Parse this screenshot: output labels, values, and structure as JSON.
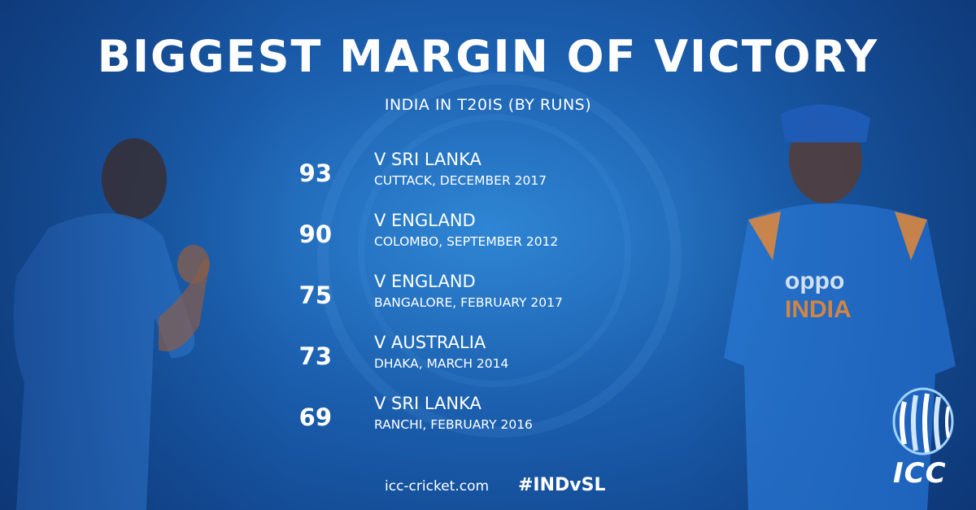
{
  "header": {
    "title": "BIGGEST MARGIN OF VICTORY",
    "subtitle": "INDIA IN T20IS (BY RUNS)"
  },
  "victories": [
    {
      "runs": "93",
      "opponent": "V SRI LANKA",
      "venue": "CUTTACK, DECEMBER 2017"
    },
    {
      "runs": "90",
      "opponent": "V ENGLAND",
      "venue": "COLOMBO, SEPTEMBER 2012"
    },
    {
      "runs": "75",
      "opponent": "V ENGLAND",
      "venue": "BANGALORE, FEBRUARY 2017"
    },
    {
      "runs": "73",
      "opponent": "V AUSTRALIA",
      "venue": "DHAKA, MARCH 2014"
    },
    {
      "runs": "69",
      "opponent": "V SRI LANKA",
      "venue": "RANCHI, FEBRUARY 2016"
    }
  ],
  "footer": {
    "website": "icc-cricket.com",
    "hashtag": "#INDvSL"
  },
  "logo": {
    "text": "ICC",
    "icon": "icc-globe-logo"
  },
  "jersey": {
    "sponsor": "oppo",
    "country": "INDIA"
  },
  "colors": {
    "background": "#1b5fae",
    "jersey_blue": "#1f6fd1",
    "text": "#ffffff",
    "accent_orange": "#f08a2e"
  }
}
